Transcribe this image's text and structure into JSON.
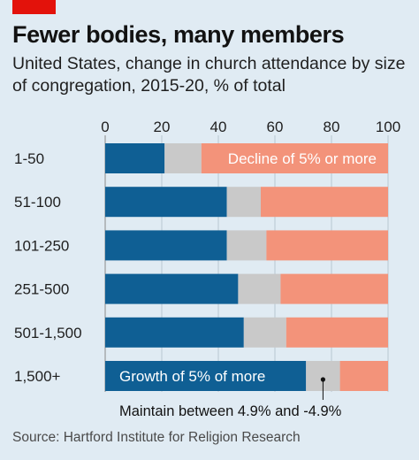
{
  "header": {
    "title": "Fewer bodies, many members",
    "subtitle": "United States, change in church attendance by size of congregation, 2015-20, % of total"
  },
  "source": "Source: Hartford Institute for Religion Research",
  "colors": {
    "growth": "#0f5f94",
    "maintain": "#c9c9c9",
    "decline": "#f3937a",
    "background": "#e0ebf3",
    "brand": "#e3120b"
  },
  "chart_data": {
    "type": "bar",
    "orientation": "horizontal",
    "stacked": true,
    "categories": [
      "1-50",
      "51-100",
      "101-250",
      "251-500",
      "501-1,500",
      "1,500+"
    ],
    "series": [
      {
        "name": "Growth of 5% of more",
        "values": [
          21,
          43,
          43,
          47,
          49,
          71
        ]
      },
      {
        "name": "Maintain between 4.9% and -4.9%",
        "values": [
          13,
          12,
          14,
          15,
          15,
          12
        ]
      },
      {
        "name": "Decline of 5% or more",
        "values": [
          66,
          45,
          43,
          38,
          36,
          17
        ]
      }
    ],
    "xlim": [
      0,
      100
    ],
    "xticks": [
      "0",
      "20",
      "40",
      "60",
      "80",
      "100"
    ],
    "grid": true,
    "annotations": [
      {
        "series": "Decline of 5% or more",
        "category": "1-50"
      },
      {
        "series": "Growth of 5% of more",
        "category": "1,500+"
      },
      {
        "series": "Maintain between 4.9% and -4.9%",
        "category": "1,500+",
        "placement": "below-with-leader"
      }
    ]
  }
}
